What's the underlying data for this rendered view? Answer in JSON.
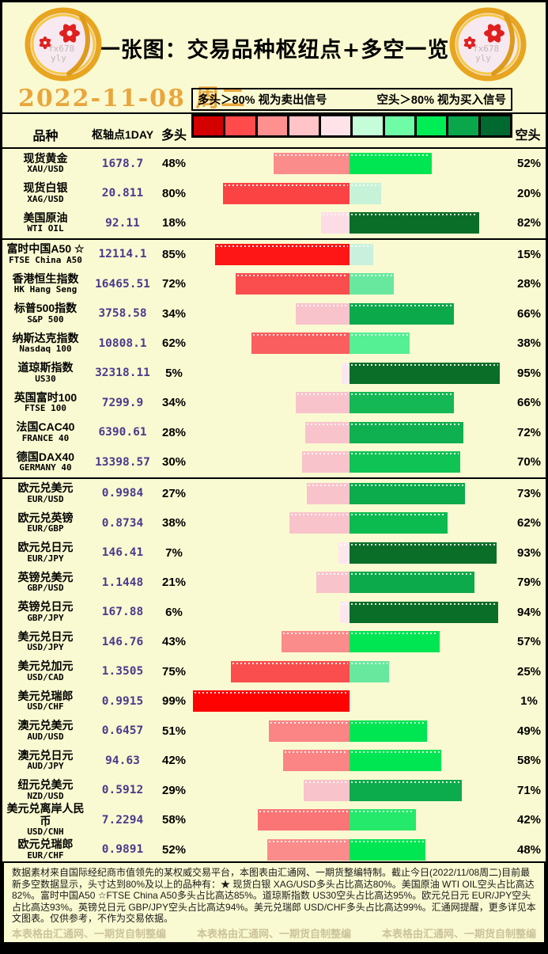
{
  "header": {
    "title": "一张图：交易品种枢纽点+多空一览",
    "date": "2022-11-08 周二",
    "legend_long": "多头＞80% 视为卖出信号",
    "legend_short": "空头＞80% 视为买入信号",
    "logo_watermark_line1": "fx678",
    "logo_watermark_line2": "yly"
  },
  "table": {
    "col_instrument": "品种",
    "col_pivot": "枢轴点1DAY",
    "col_long": "多头",
    "col_short": "空头",
    "scale_colors": [
      "#d40000",
      "#ff4b4b",
      "#ff9090",
      "#ffc3c8",
      "#ffe3e8",
      "#c5fcd9",
      "#6efda6",
      "#00ee55",
      "#0aa64b",
      "#006930"
    ]
  },
  "chart_data": {
    "type": "bar",
    "title": "一张图：交易品种枢纽点+多空一览",
    "date": "2022-11-08 周二",
    "xlabel": "多头% / 空头%",
    "axis_note": "bars diverge from center, 2px per percent, max 100%",
    "rows": [
      {
        "group": 0,
        "name_cn": "现货黄金",
        "code": "XAU/USD",
        "pivot": "1678.7",
        "long_pct": 48,
        "short_pct": 52,
        "long_color": "#fb8c8c",
        "short_color": "#00e552"
      },
      {
        "group": 0,
        "name_cn": "现货白银",
        "code": "XAG/USD",
        "pivot": "20.811",
        "long_pct": 80,
        "short_pct": 20,
        "long_color": "#fb4343",
        "short_color": "#c6f2d7"
      },
      {
        "group": 0,
        "name_cn": "美国原油",
        "code": "WTI OIL",
        "pivot": "92.11",
        "long_pct": 18,
        "short_pct": 82,
        "long_color": "#fcdde6",
        "short_color": "#0b6e28"
      },
      {
        "group": 1,
        "name_cn": "富时中国A50 ☆",
        "code": "FTSE China A50",
        "pivot": "12114.1",
        "long_pct": 85,
        "short_pct": 15,
        "long_color": "#fe1515",
        "short_color": "#c9f0dc"
      },
      {
        "group": 1,
        "name_cn": "香港恒生指数",
        "code": "HK Hang Seng",
        "pivot": "16465.51",
        "long_pct": 72,
        "short_pct": 28,
        "long_color": "#fa4d4d",
        "short_color": "#68e89e"
      },
      {
        "group": 1,
        "name_cn": "标普500指数",
        "code": "S&P 500",
        "pivot": "3758.58",
        "long_pct": 34,
        "short_pct": 66,
        "long_color": "#f9c3cb",
        "short_color": "#0ca94b"
      },
      {
        "group": 1,
        "name_cn": "纳斯达克指数",
        "code": "Nasdaq 100",
        "pivot": "10808.1",
        "long_pct": 62,
        "short_pct": 38,
        "long_color": "#fb5e5e",
        "short_color": "#55ef94"
      },
      {
        "group": 1,
        "name_cn": "道琼斯指数",
        "code": "US30",
        "pivot": "32318.11",
        "long_pct": 5,
        "short_pct": 95,
        "long_color": "#fde7ee",
        "short_color": "#0b6e28"
      },
      {
        "group": 1,
        "name_cn": "英国富时100",
        "code": "FTSE 100",
        "pivot": "7299.9",
        "long_pct": 34,
        "short_pct": 66,
        "long_color": "#f9c3cb",
        "short_color": "#14b854"
      },
      {
        "group": 1,
        "name_cn": "法国CAC40",
        "code": "FRANCE 40",
        "pivot": "6390.61",
        "long_pct": 28,
        "short_pct": 72,
        "long_color": "#f9c3cb",
        "short_color": "#0fb04f"
      },
      {
        "group": 1,
        "name_cn": "德国DAX40",
        "code": "GERMANY 40",
        "pivot": "13398.57",
        "long_pct": 30,
        "short_pct": 70,
        "long_color": "#f9c3cb",
        "short_color": "#10c355"
      },
      {
        "group": 2,
        "name_cn": "欧元兑美元",
        "code": "EUR/USD",
        "pivot": "0.9984",
        "long_pct": 27,
        "short_pct": 73,
        "long_color": "#f9c3cb",
        "short_color": "#0cab4b"
      },
      {
        "group": 2,
        "name_cn": "欧元兑英镑",
        "code": "EUR/GBP",
        "pivot": "0.8734",
        "long_pct": 38,
        "short_pct": 62,
        "long_color": "#f9c3cb",
        "short_color": "#0cbb50"
      },
      {
        "group": 2,
        "name_cn": "欧元兑日元",
        "code": "EUR/JPY",
        "pivot": "146.41",
        "long_pct": 7,
        "short_pct": 93,
        "long_color": "#fde7ee",
        "short_color": "#0b6e28"
      },
      {
        "group": 2,
        "name_cn": "英镑兑美元",
        "code": "GBP/USD",
        "pivot": "1.1448",
        "long_pct": 21,
        "short_pct": 79,
        "long_color": "#f9c3cb",
        "short_color": "#0caa4b"
      },
      {
        "group": 2,
        "name_cn": "英镑兑日元",
        "code": "GBP/JPY",
        "pivot": "167.88",
        "long_pct": 6,
        "short_pct": 94,
        "long_color": "#fde7ee",
        "short_color": "#0b6e28"
      },
      {
        "group": 2,
        "name_cn": "美元兑日元",
        "code": "USD/JPY",
        "pivot": "146.76",
        "long_pct": 43,
        "short_pct": 57,
        "long_color": "#fb8c8c",
        "short_color": "#00e552"
      },
      {
        "group": 2,
        "name_cn": "美元兑加元",
        "code": "USD/CAD",
        "pivot": "1.3505",
        "long_pct": 75,
        "short_pct": 25,
        "long_color": "#fa4d4d",
        "short_color": "#68e89e"
      },
      {
        "group": 2,
        "name_cn": "美元兑瑞郎",
        "code": "USD/CHF",
        "pivot": "0.9915",
        "long_pct": 99,
        "short_pct": 1,
        "long_color": "#fe0202",
        "short_color": "#c6f2d7"
      },
      {
        "group": 2,
        "name_cn": "澳元兑美元",
        "code": "AUD/USD",
        "pivot": "0.6457",
        "long_pct": 51,
        "short_pct": 49,
        "long_color": "#fb8484",
        "short_color": "#00e552"
      },
      {
        "group": 2,
        "name_cn": "澳元兑日元",
        "code": "AUD/JPY",
        "pivot": "94.63",
        "long_pct": 42,
        "short_pct": 58,
        "long_color": "#fb8484",
        "short_color": "#00e552"
      },
      {
        "group": 2,
        "name_cn": "纽元兑美元",
        "code": "NZD/USD",
        "pivot": "0.5912",
        "long_pct": 29,
        "short_pct": 71,
        "long_color": "#f9c3cb",
        "short_color": "#0cab4b"
      },
      {
        "group": 2,
        "name_cn": "美元兑离岸人民币",
        "code": "USD/CNH",
        "pivot": "7.2294",
        "long_pct": 58,
        "short_pct": 42,
        "long_color": "#fa7575",
        "short_color": "#25e96b"
      },
      {
        "group": 2,
        "name_cn": "欧元兑瑞郎",
        "code": "EUR/CHF",
        "pivot": "0.9891",
        "long_pct": 52,
        "short_pct": 48,
        "long_color": "#fb8c8c",
        "short_color": "#00e552"
      }
    ]
  },
  "footer": {
    "text": "数据素材来自国际经纪商市值领先的某权威交易平台，本图表由汇通网、一期货整编特制。截止今日(2022/11/08周二)目前最新多空数据显示，头寸达到80%及以上的品种有：★ 现货白银 XAG/USD多头占比高达80%。美国原油 WTI OIL空头占比高达82%。富时中国A50 ☆FTSE China A50多头占比高达85%。道琼斯指数 US30空头占比高达95%。欧元兑日元 EUR/JPY空头占比高达93%。英镑兑日元 GBP/JPY空头占比高达94%。美元兑瑞郎 USD/CHF多头占比高达99%。汇通网提醒，更多详见本文图表。仅供参考，不作为交易依据。",
    "watermark": "本表格由汇通网、一期货自制整编"
  }
}
